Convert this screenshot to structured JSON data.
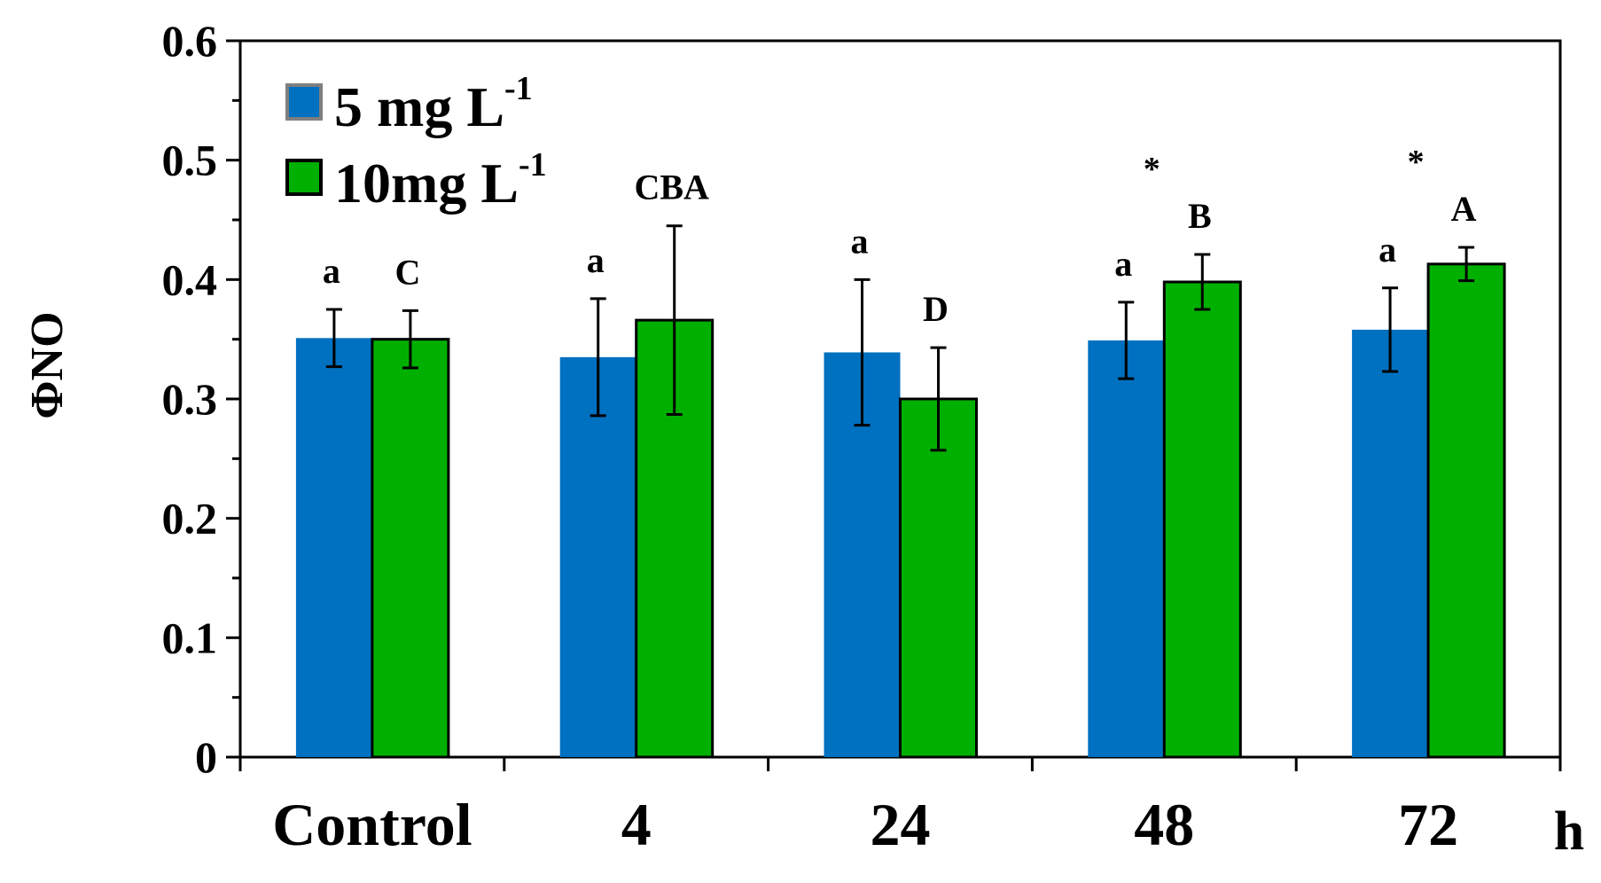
{
  "chart_data": {
    "type": "bar",
    "title": "",
    "xlabel": "",
    "ylabel": "ΦNO",
    "x_unit": "h",
    "ylim": [
      0,
      0.6
    ],
    "yticks": [
      "0",
      "0.1",
      "0.2",
      "0.3",
      "0.4",
      "0.5",
      "0.6"
    ],
    "ytick_values": [
      0,
      0.1,
      0.2,
      0.3,
      0.4,
      0.5,
      0.6
    ],
    "categories": [
      "Control",
      "4",
      "24",
      "48",
      "72"
    ],
    "series": [
      {
        "name": "5 mg L",
        "name_sup": "-1",
        "color": "#0070C0",
        "values": [
          0.351,
          0.335,
          0.339,
          0.349,
          0.358
        ],
        "errors": [
          0.024,
          0.049,
          0.061,
          0.032,
          0.035
        ],
        "letters": [
          "a",
          "a",
          "a",
          "a",
          "a"
        ],
        "stars": [
          "",
          "",
          "",
          "",
          ""
        ]
      },
      {
        "name": "10mg L",
        "name_sup": "-1",
        "color": "#00B000",
        "values": [
          0.35,
          0.366,
          0.3,
          0.398,
          0.413
        ],
        "errors": [
          0.024,
          0.079,
          0.043,
          0.023,
          0.014
        ],
        "letters": [
          "C",
          "CBA",
          "D",
          "B",
          "A"
        ],
        "stars": [
          "",
          "",
          "",
          "*",
          "*"
        ]
      }
    ],
    "legend_position": "top-left",
    "grid": false
  }
}
